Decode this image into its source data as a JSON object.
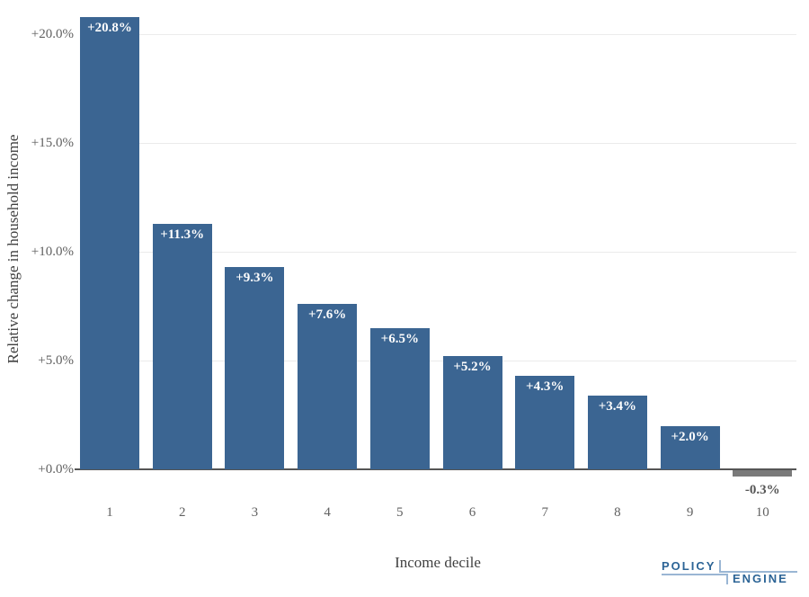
{
  "chart_data": {
    "type": "bar",
    "title": "",
    "xlabel": "Income decile",
    "ylabel": "Relative change in household income",
    "categories": [
      "1",
      "2",
      "3",
      "4",
      "5",
      "6",
      "7",
      "8",
      "9",
      "10"
    ],
    "values": [
      20.8,
      11.3,
      9.3,
      7.6,
      6.5,
      5.2,
      4.3,
      3.4,
      2.0,
      -0.3
    ],
    "bar_labels": [
      "+20.8%",
      "+11.3%",
      "+9.3%",
      "+7.6%",
      "+6.5%",
      "+5.2%",
      "+4.3%",
      "+3.4%",
      "+2.0%",
      "-0.3%"
    ],
    "y_ticks": [
      {
        "value": 0,
        "label": "+0.0%"
      },
      {
        "value": 5,
        "label": "+5.0%"
      },
      {
        "value": 10,
        "label": "+10.0%"
      },
      {
        "value": 15,
        "label": "+15.0%"
      },
      {
        "value": 20,
        "label": "+20.0%"
      }
    ],
    "ylim": [
      -1.5,
      21.6
    ],
    "grid": true,
    "legend": false,
    "colors": {
      "positive_bar": "#3b6592",
      "negative_bar": "#7a7a7a",
      "bar_label_positive": "#fdfdfd",
      "bar_label_negative": "#555555",
      "gridline": "#ebebeb",
      "zero_line": "#555555",
      "tick_label": "#616161",
      "axis_title": "#414141"
    }
  },
  "branding": {
    "word1": "POLICY",
    "word2": "ENGINE",
    "text_color": "#2C6496",
    "line_color": "#9ab6d4"
  }
}
